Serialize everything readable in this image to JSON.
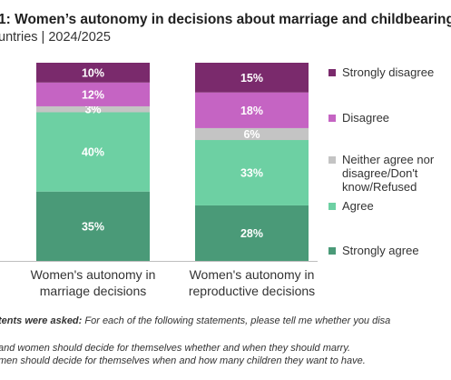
{
  "header": {
    "title": "1: Women’s autonomy in decisions about marriage and childbearing",
    "subtitle": "untries | 2024/2025"
  },
  "chart_data": {
    "type": "bar",
    "stacked": true,
    "categories": [
      [
        "Women's autonomy in",
        "marriage decisions"
      ],
      [
        "Women's autonomy in",
        "reproductive decisions"
      ]
    ],
    "series": [
      {
        "name": "Strongly agree",
        "color": "#4a9a78",
        "values": [
          35,
          28
        ],
        "labels": [
          "35%",
          "28%"
        ]
      },
      {
        "name": "Agree",
        "color": "#6dd0a3",
        "values": [
          40,
          33
        ],
        "labels": [
          "40%",
          "33%"
        ]
      },
      {
        "name": "Neither agree nor disagree/Don't know/Refused",
        "color": "#c4c4c4",
        "values": [
          3,
          6
        ],
        "labels": [
          "3%",
          "6%"
        ]
      },
      {
        "name": "Disagree",
        "color": "#c564c3",
        "values": [
          12,
          18
        ],
        "labels": [
          "12%",
          "18%"
        ]
      },
      {
        "name": "Strongly disagree",
        "color": "#7a2a6c",
        "values": [
          10,
          15
        ],
        "labels": [
          "10%",
          "15%"
        ]
      }
    ],
    "ylim": [
      0,
      100
    ],
    "legend": "right",
    "grid": false
  },
  "legend_items": [
    {
      "lines": [
        "Strongly disagree"
      ],
      "color": "#7a2a6c"
    },
    {
      "lines": [
        "Disagree"
      ],
      "color": "#c564c3"
    },
    {
      "lines": [
        "Neither agree nor",
        "disagree/Don't",
        "know/Refused"
      ],
      "color": "#c4c4c4"
    },
    {
      "lines": [
        "Agree"
      ],
      "color": "#6dd0a3"
    },
    {
      "lines": [
        "Strongly agree"
      ],
      "color": "#4a9a78"
    }
  ],
  "footnotes": {
    "question_lead": "tents were asked:",
    "question_text": " For each of the following statements, please tell me whether you disa",
    "statement_1": " and women should decide for themselves whether and when they should marry.",
    "statement_2": "men should decide for themselves when and how many children they want to have."
  }
}
